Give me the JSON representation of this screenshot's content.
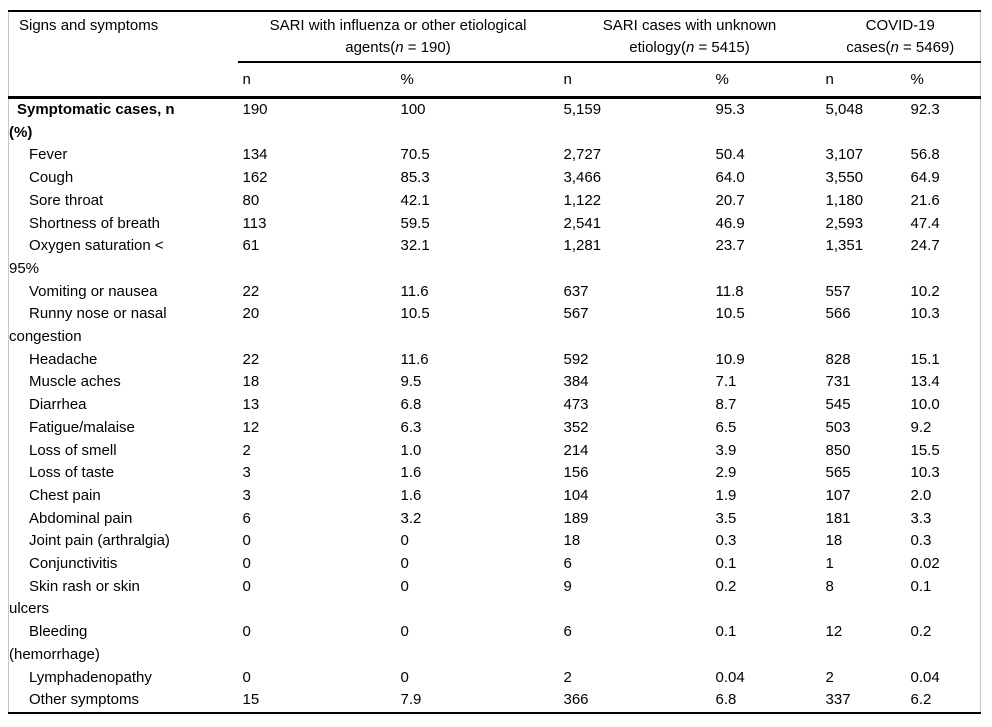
{
  "table": {
    "corner_header": "Signs and symptoms",
    "column_groups": [
      {
        "line1": "SARI with influenza or other etiological",
        "line2_pre": "agents(",
        "n_italic": "n",
        "line2_post": " = 190)"
      },
      {
        "line1": "SARI cases with unknown",
        "line2_pre": "etiology(",
        "n_italic": "n",
        "line2_post": " = 5415)"
      },
      {
        "line1": "COVID-19",
        "line2_pre": "cases(",
        "n_italic": "n",
        "line2_post": " = 5469)"
      }
    ],
    "subheaders": [
      "n",
      "%",
      "n",
      "%",
      "n",
      "%"
    ],
    "rows": [
      {
        "indent": 0,
        "label": "Symptomatic cases, n\n(%)",
        "values": [
          "190",
          "100",
          "5,159",
          "95.3",
          "5,048",
          "92.3"
        ]
      },
      {
        "indent": 1,
        "label": "Fever",
        "values": [
          "134",
          "70.5",
          "2,727",
          "50.4",
          "3,107",
          "56.8"
        ]
      },
      {
        "indent": 1,
        "label": "Cough",
        "values": [
          "162",
          "85.3",
          "3,466",
          "64.0",
          "3,550",
          "64.9"
        ]
      },
      {
        "indent": 1,
        "label": "Sore throat",
        "values": [
          "80",
          "42.1",
          "1,122",
          "20.7",
          "1,180",
          "21.6"
        ]
      },
      {
        "indent": 1,
        "label": "Shortness of breath",
        "values": [
          "113",
          "59.5",
          "2,541",
          "46.9",
          "2,593",
          "47.4"
        ]
      },
      {
        "indent": 1,
        "label": "Oxygen saturation <\n95%",
        "values": [
          "61",
          "32.1",
          "1,281",
          "23.7",
          "1,351",
          "24.7"
        ]
      },
      {
        "indent": 1,
        "label": "Vomiting or nausea",
        "values": [
          "22",
          "11.6",
          "637",
          "11.8",
          "557",
          "10.2"
        ]
      },
      {
        "indent": 1,
        "label": "Runny nose or nasal\ncongestion",
        "values": [
          "20",
          "10.5",
          "567",
          "10.5",
          "566",
          "10.3"
        ]
      },
      {
        "indent": 1,
        "label": "Headache",
        "values": [
          "22",
          "11.6",
          "592",
          "10.9",
          "828",
          "15.1"
        ]
      },
      {
        "indent": 1,
        "label": "Muscle aches",
        "values": [
          "18",
          "9.5",
          "384",
          "7.1",
          "731",
          "13.4"
        ]
      },
      {
        "indent": 1,
        "label": "Diarrhea",
        "values": [
          "13",
          "6.8",
          "473",
          "8.7",
          "545",
          "10.0"
        ]
      },
      {
        "indent": 1,
        "label": "Fatigue/malaise",
        "values": [
          "12",
          "6.3",
          "352",
          "6.5",
          "503",
          "9.2"
        ]
      },
      {
        "indent": 1,
        "label": "Loss of smell",
        "values": [
          "2",
          "1.0",
          "214",
          "3.9",
          "850",
          "15.5"
        ]
      },
      {
        "indent": 1,
        "label": "Loss of taste",
        "values": [
          "3",
          "1.6",
          "156",
          "2.9",
          "565",
          "10.3"
        ]
      },
      {
        "indent": 1,
        "label": "Chest pain",
        "values": [
          "3",
          "1.6",
          "104",
          "1.9",
          "107",
          "2.0"
        ]
      },
      {
        "indent": 1,
        "label": "Abdominal pain",
        "values": [
          "6",
          "3.2",
          "189",
          "3.5",
          "181",
          "3.3"
        ]
      },
      {
        "indent": 1,
        "label": "Joint pain (arthralgia)",
        "values": [
          "0",
          "0",
          "18",
          "0.3",
          "18",
          "0.3"
        ]
      },
      {
        "indent": 1,
        "label": "Conjunctivitis",
        "values": [
          "0",
          "0",
          "6",
          "0.1",
          "1",
          "0.02"
        ]
      },
      {
        "indent": 1,
        "label": "Skin rash or skin\nulcers",
        "values": [
          "0",
          "0",
          "9",
          "0.2",
          "8",
          "0.1"
        ]
      },
      {
        "indent": 1,
        "label": "Bleeding\n(hemorrhage)",
        "values": [
          "0",
          "0",
          "6",
          "0.1",
          "12",
          "0.2"
        ]
      },
      {
        "indent": 1,
        "label": "Lymphadenopathy",
        "values": [
          "0",
          "0",
          "2",
          "0.04",
          "2",
          "0.04"
        ]
      },
      {
        "indent": 1,
        "label": "Other symptoms",
        "values": [
          "15",
          "7.9",
          "366",
          "6.8",
          "337",
          "6.2"
        ]
      }
    ],
    "colors": {
      "rule": "#000000",
      "side_border": "#c6c6c6",
      "text": "#000000",
      "background": "#ffffff"
    }
  }
}
